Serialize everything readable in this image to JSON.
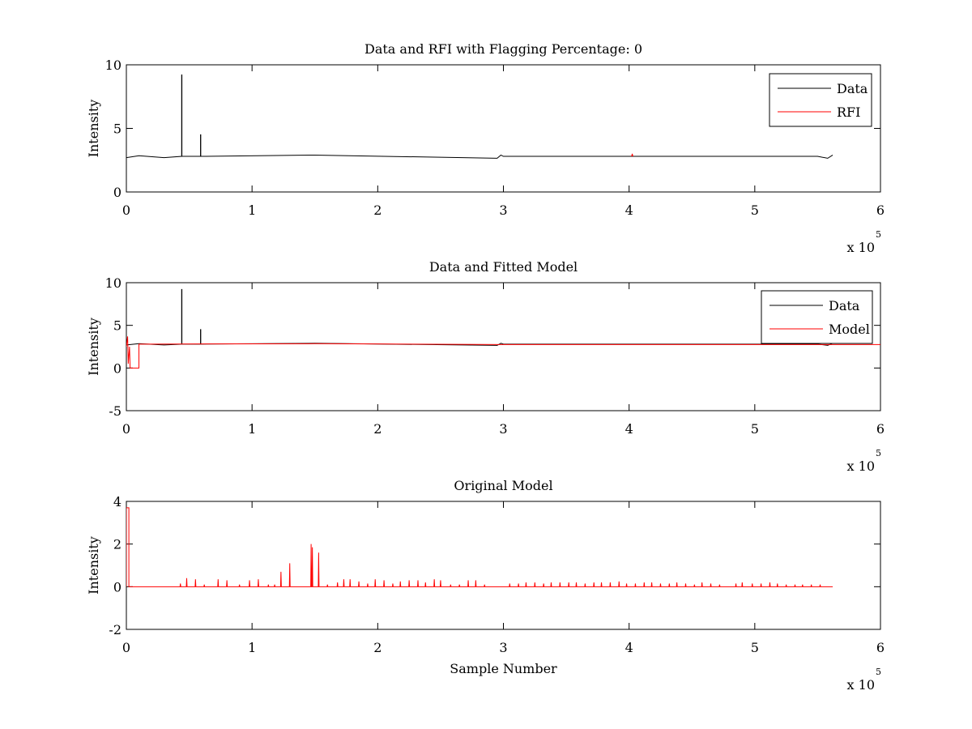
{
  "chart_data": [
    {
      "type": "line",
      "title": "Data and RFI with Flagging Percentage: 0",
      "xlabel": "",
      "ylabel": "Intensity",
      "xlim": [
        0,
        600000
      ],
      "ylim": [
        0,
        10
      ],
      "xticks": [
        "0",
        "1",
        "2",
        "3",
        "4",
        "5",
        "6"
      ],
      "yticks": [
        "0",
        "5",
        "10"
      ],
      "x_multiplier_base": "x 10",
      "x_multiplier_exp": "5",
      "legend": {
        "placement": "top-right",
        "entries": [
          "Data",
          "RFI"
        ]
      },
      "grid": false,
      "series": [
        {
          "name": "Data",
          "color": "#000000",
          "baseline": 2.8,
          "x": [
            0,
            10000,
            30000,
            44000,
            44000,
            44200,
            44200,
            59000,
            59000,
            59200,
            59200,
            150000,
            295000,
            298000,
            300000,
            550000,
            558000,
            562000
          ],
          "y": [
            2.7,
            2.85,
            2.7,
            2.8,
            9.2,
            9.2,
            2.8,
            2.8,
            4.5,
            4.5,
            2.8,
            2.9,
            2.65,
            2.9,
            2.8,
            2.8,
            2.65,
            2.9
          ]
        },
        {
          "name": "RFI",
          "color": "#ff0000",
          "x": [
            402000,
            402500,
            403000
          ],
          "y": [
            2.8,
            3.0,
            2.8
          ]
        }
      ]
    },
    {
      "type": "line",
      "title": "Data and Fitted Model",
      "xlabel": "",
      "ylabel": "Intensity",
      "xlim": [
        0,
        600000
      ],
      "ylim": [
        -5,
        10
      ],
      "xticks": [
        "0",
        "1",
        "2",
        "3",
        "4",
        "5",
        "6"
      ],
      "yticks": [
        "-5",
        "0",
        "5",
        "10"
      ],
      "x_multiplier_base": "x 10",
      "x_multiplier_exp": "5",
      "legend": {
        "placement": "top-right",
        "entries": [
          "Data",
          "Model"
        ]
      },
      "grid": false,
      "series": [
        {
          "name": "Data",
          "color": "#000000",
          "x": [
            0,
            10000,
            30000,
            44000,
            44000,
            44200,
            44200,
            59000,
            59000,
            59200,
            59200,
            150000,
            295000,
            298000,
            300000,
            550000,
            558000,
            562000
          ],
          "y": [
            2.7,
            2.85,
            2.7,
            2.8,
            9.2,
            9.2,
            2.8,
            2.8,
            4.5,
            4.5,
            2.8,
            2.9,
            2.65,
            2.9,
            2.8,
            2.8,
            2.65,
            2.9
          ]
        },
        {
          "name": "Model",
          "color": "#ff0000",
          "x": [
            0,
            1000,
            1500,
            2500,
            3000,
            5000,
            5000,
            10000,
            10000,
            15000,
            150000,
            300000,
            450000,
            600000
          ],
          "y": [
            2.5,
            3.7,
            0.5,
            2.5,
            0,
            0,
            0,
            0,
            2.8,
            2.8,
            2.85,
            2.75,
            2.75,
            2.75
          ]
        }
      ]
    },
    {
      "type": "line",
      "title": "Original Model",
      "xlabel": "Sample Number",
      "ylabel": "Intensity",
      "xlim": [
        0,
        600000
      ],
      "ylim": [
        -2,
        4
      ],
      "xticks": [
        "0",
        "1",
        "2",
        "3",
        "4",
        "5",
        "6"
      ],
      "yticks": [
        "-2",
        "0",
        "2",
        "4"
      ],
      "x_multiplier_base": "x 10",
      "x_multiplier_exp": "5",
      "grid": false,
      "series": [
        {
          "color": "#ff0000",
          "baseline": 0,
          "xmax": 562000,
          "start_block": {
            "x": [
              0,
              2000
            ],
            "y": 3.7
          },
          "spikes": [
            [
              43000,
              0.15
            ],
            [
              48000,
              0.4
            ],
            [
              55000,
              0.35
            ],
            [
              62000,
              0.1
            ],
            [
              73000,
              0.35
            ],
            [
              80000,
              0.3
            ],
            [
              90000,
              0.1
            ],
            [
              98000,
              0.3
            ],
            [
              105000,
              0.35
            ],
            [
              113000,
              0.1
            ],
            [
              118000,
              0.1
            ],
            [
              123000,
              0.7
            ],
            [
              130000,
              1.1
            ],
            [
              147000,
              2.0
            ],
            [
              148000,
              1.85
            ],
            [
              153000,
              1.6
            ],
            [
              160000,
              0.1
            ],
            [
              168000,
              0.2
            ],
            [
              173000,
              0.35
            ],
            [
              178000,
              0.35
            ],
            [
              185000,
              0.25
            ],
            [
              192000,
              0.15
            ],
            [
              198000,
              0.35
            ],
            [
              205000,
              0.3
            ],
            [
              212000,
              0.15
            ],
            [
              218000,
              0.25
            ],
            [
              225000,
              0.3
            ],
            [
              232000,
              0.3
            ],
            [
              238000,
              0.2
            ],
            [
              245000,
              0.35
            ],
            [
              250000,
              0.3
            ],
            [
              258000,
              0.1
            ],
            [
              265000,
              0.1
            ],
            [
              272000,
              0.3
            ],
            [
              278000,
              0.3
            ],
            [
              285000,
              0.1
            ],
            [
              305000,
              0.15
            ],
            [
              312000,
              0.15
            ],
            [
              318000,
              0.2
            ],
            [
              325000,
              0.2
            ],
            [
              332000,
              0.15
            ],
            [
              338000,
              0.2
            ],
            [
              345000,
              0.2
            ],
            [
              352000,
              0.2
            ],
            [
              358000,
              0.2
            ],
            [
              365000,
              0.15
            ],
            [
              372000,
              0.2
            ],
            [
              378000,
              0.2
            ],
            [
              385000,
              0.2
            ],
            [
              392000,
              0.25
            ],
            [
              398000,
              0.15
            ],
            [
              405000,
              0.15
            ],
            [
              412000,
              0.2
            ],
            [
              418000,
              0.2
            ],
            [
              425000,
              0.15
            ],
            [
              432000,
              0.15
            ],
            [
              438000,
              0.2
            ],
            [
              445000,
              0.15
            ],
            [
              452000,
              0.1
            ],
            [
              458000,
              0.2
            ],
            [
              465000,
              0.15
            ],
            [
              472000,
              0.1
            ],
            [
              485000,
              0.15
            ],
            [
              490000,
              0.2
            ],
            [
              498000,
              0.15
            ],
            [
              505000,
              0.15
            ],
            [
              512000,
              0.2
            ],
            [
              518000,
              0.15
            ],
            [
              525000,
              0.1
            ],
            [
              532000,
              0.1
            ],
            [
              538000,
              0.1
            ],
            [
              545000,
              0.1
            ],
            [
              552000,
              0.1
            ]
          ]
        }
      ]
    }
  ]
}
